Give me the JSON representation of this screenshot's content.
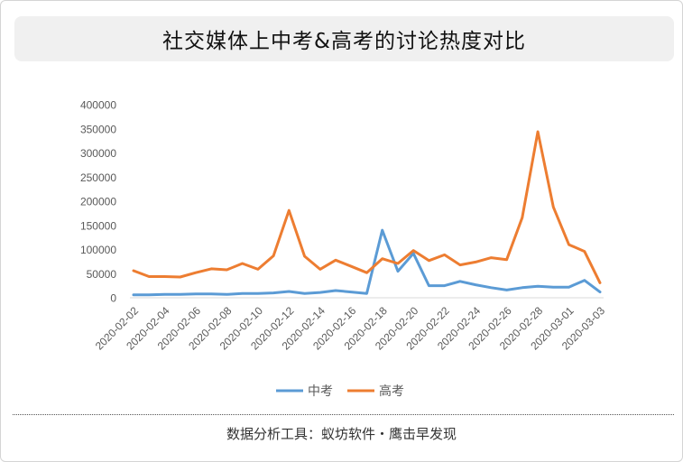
{
  "header": {
    "title": "社交媒体上中考&高考的讨论热度对比"
  },
  "footer": {
    "source": "数据分析工具：蚁坊软件・鹰击早发现"
  },
  "colors": {
    "zhongkao": "#5b9bd5",
    "gaokao": "#ed7d31",
    "axis_text": "#595959",
    "axis_line": "#d9d9d9"
  },
  "chart_data": {
    "type": "line",
    "title": "社交媒体上中考&高考的讨论热度对比",
    "x": [
      "2020-02-02",
      "2020-02-03",
      "2020-02-04",
      "2020-02-05",
      "2020-02-06",
      "2020-02-07",
      "2020-02-08",
      "2020-02-09",
      "2020-02-10",
      "2020-02-11",
      "2020-02-12",
      "2020-02-13",
      "2020-02-14",
      "2020-02-15",
      "2020-02-16",
      "2020-02-17",
      "2020-02-18",
      "2020-02-19",
      "2020-02-20",
      "2020-02-21",
      "2020-02-22",
      "2020-02-23",
      "2020-02-24",
      "2020-02-25",
      "2020-02-26",
      "2020-02-27",
      "2020-02-28",
      "2020-02-29",
      "2020-03-01",
      "2020-03-02",
      "2020-03-03"
    ],
    "xtick_labels": [
      "2020-02-02",
      "2020-02-04",
      "2020-02-06",
      "2020-02-08",
      "2020-02-10",
      "2020-02-12",
      "2020-02-14",
      "2020-02-16",
      "2020-02-18",
      "2020-02-20",
      "2020-02-22",
      "2020-02-24",
      "2020-02-26",
      "2020-02-28",
      "2020-03-01",
      "2020-03-03"
    ],
    "ylim": [
      0,
      400000
    ],
    "yticks": [
      0,
      50000,
      100000,
      150000,
      200000,
      250000,
      300000,
      350000,
      400000
    ],
    "grid": false,
    "legend_position": "bottom",
    "series": [
      {
        "name": "中考",
        "values": [
          6000,
          6000,
          7000,
          7000,
          8000,
          8000,
          7000,
          9000,
          9000,
          10000,
          13000,
          9000,
          11000,
          15000,
          12000,
          9000,
          140000,
          55000,
          92000,
          25000,
          25000,
          34000,
          27000,
          21000,
          16000,
          21000,
          24000,
          22000,
          22000,
          36000,
          12000
        ]
      },
      {
        "name": "高考",
        "values": [
          56000,
          44000,
          44000,
          43000,
          52000,
          60000,
          58000,
          71000,
          59000,
          87000,
          181000,
          86000,
          59000,
          78000,
          65000,
          52000,
          81000,
          71000,
          98000,
          77000,
          89000,
          68000,
          74000,
          83000,
          79000,
          166000,
          344000,
          188000,
          110000,
          96000,
          31000
        ]
      }
    ]
  }
}
